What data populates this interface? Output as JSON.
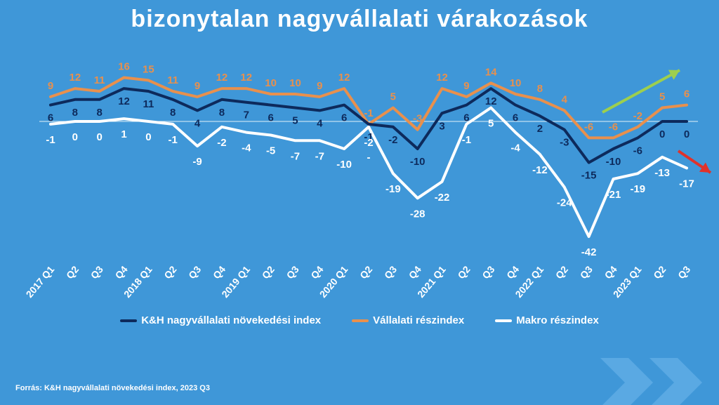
{
  "title": "bizonytalan nagyvállalati várakozások",
  "source": "Forrás: K&H nagyvállalati növekedési index, 2023 Q3",
  "colors": {
    "background": "#3f97d8",
    "index": "#0d2a5c",
    "corporate": "#e8904d",
    "macro": "#ffffff",
    "arrow_up": "#9dcf4e",
    "arrow_down": "#e0322b"
  },
  "chart_data": {
    "type": "line",
    "categories": [
      "2017 Q1",
      "Q2",
      "Q3",
      "Q4",
      "2018 Q1",
      "Q2",
      "Q3",
      "Q4",
      "2019 Q1",
      "Q2",
      "Q3",
      "Q4",
      "2020 Q1",
      "Q2",
      "Q3",
      "Q4",
      "2021 Q1",
      "Q2",
      "Q3",
      "Q4",
      "2022 Q1",
      "Q2",
      "Q3",
      "Q4",
      "2023 Q1",
      "Q2",
      "Q3"
    ],
    "series": [
      {
        "name": "K&H nagyvállalati növekedési index",
        "color": "#0d2a5c",
        "values": [
          6,
          8,
          8,
          12,
          11,
          8,
          4,
          8,
          7,
          6,
          5,
          4,
          6,
          -1,
          -2,
          -10,
          3,
          6,
          12,
          6,
          2,
          -3,
          -15,
          -10,
          -6,
          0,
          0
        ],
        "labels": [
          "6",
          "8",
          "8",
          "12",
          "11",
          "8",
          "4",
          "8",
          "7",
          "6",
          "5",
          "4",
          "6",
          "-1",
          "-2",
          "-10",
          "3",
          "6",
          "12",
          "6",
          "2",
          "-3",
          "-15",
          "-10",
          "-6",
          "0",
          "0"
        ]
      },
      {
        "name": "Vállalati részindex",
        "color": "#e8904d",
        "values": [
          9,
          12,
          11,
          16,
          15,
          11,
          9,
          12,
          12,
          10,
          10,
          9,
          12,
          -1,
          5,
          -3,
          12,
          9,
          14,
          10,
          8,
          4,
          -6,
          -6,
          -2,
          5,
          6
        ],
        "labels": [
          "9",
          "12",
          "11",
          "16",
          "15",
          "11",
          "9",
          "12",
          "12",
          "10",
          "10",
          "9",
          "12",
          "-1",
          "5",
          "-3",
          "12",
          "9",
          "14",
          "10",
          "8",
          "4",
          "-6",
          "-6",
          "-2",
          "5",
          "6"
        ]
      },
      {
        "name": "Makro részindex",
        "color": "#ffffff",
        "values": [
          -1,
          0,
          0,
          1,
          0,
          -1,
          -9,
          -2,
          -4,
          -5,
          -7,
          -7,
          -10,
          -2,
          -19,
          -28,
          -22,
          -1,
          5,
          -4,
          -12,
          -24,
          -42,
          -21,
          -19,
          -13,
          -17
        ],
        "labels": [
          "-1",
          "0",
          "0",
          "1",
          "0",
          "-1",
          "-9",
          "-2",
          "-4",
          "-5",
          "-7",
          "-7",
          "-10",
          "-2",
          "-19",
          "-28",
          "-22",
          "-1",
          "5",
          "-4",
          "-12",
          "-24",
          "-42",
          "-21",
          "-19",
          "-13",
          "-17"
        ]
      }
    ],
    "ylim": [
      -45,
      20
    ],
    "zero_line_label": "-",
    "legend": "bottom"
  }
}
